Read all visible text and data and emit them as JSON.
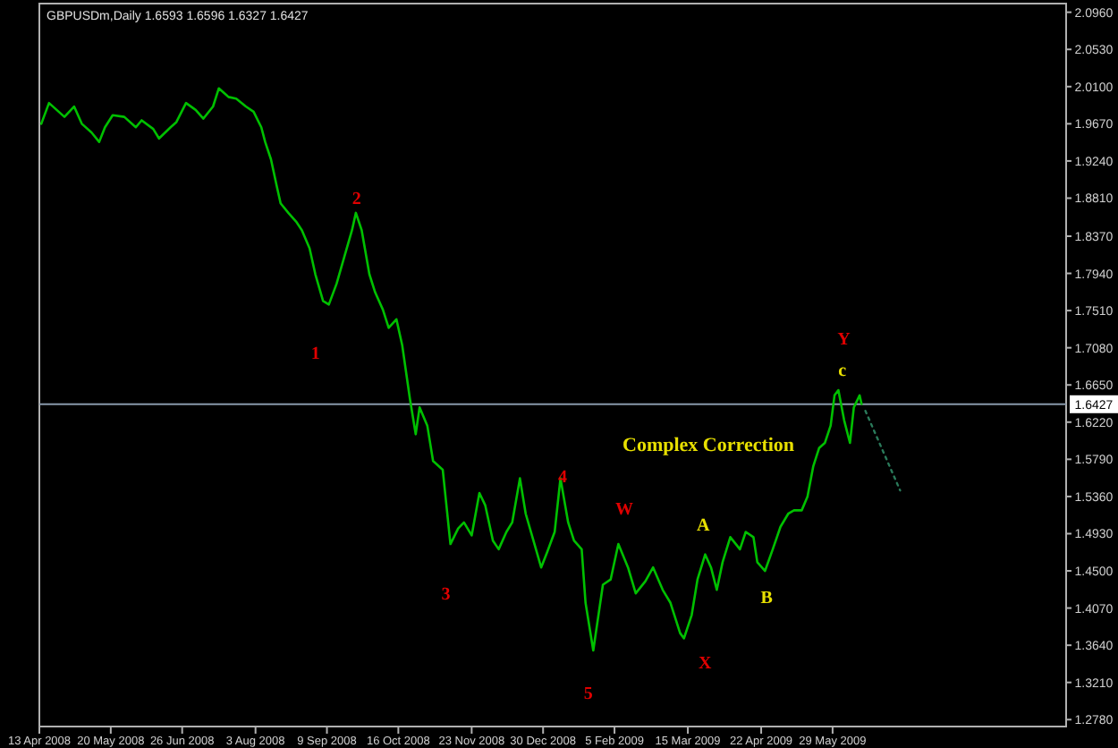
{
  "chart_data": {
    "type": "line",
    "title": "GBPUSDm,Daily  1.6593  1.6596  1.6327  1.6427",
    "xlim": [
      "2008-04-13",
      "2009-09-27"
    ],
    "xticks": [
      {
        "value": "2008-04-13",
        "label": "13 Apr 2008"
      },
      {
        "value": "2008-05-20",
        "label": "20 May 2008"
      },
      {
        "value": "2008-06-26",
        "label": "26 Jun 2008"
      },
      {
        "value": "2008-08-03",
        "label": "3 Aug 2008"
      },
      {
        "value": "2008-09-09",
        "label": "9 Sep 2008"
      },
      {
        "value": "2008-10-16",
        "label": "16 Oct 2008"
      },
      {
        "value": "2008-11-23",
        "label": "23 Nov 2008"
      },
      {
        "value": "2008-12-30",
        "label": "30 Dec 2008"
      },
      {
        "value": "2009-02-05",
        "label": "5 Feb 2009"
      },
      {
        "value": "2009-03-15",
        "label": "15 Mar 2009"
      },
      {
        "value": "2009-04-22",
        "label": "22 Apr 2009"
      },
      {
        "value": "2009-05-29",
        "label": "29 May 2009"
      }
    ],
    "ylim": [
      1.27,
      2.106
    ],
    "yticks": [
      {
        "value": 2.096,
        "label": "2.0960"
      },
      {
        "value": 2.053,
        "label": "2.0530"
      },
      {
        "value": 2.01,
        "label": "2.0100"
      },
      {
        "value": 1.967,
        "label": "1.9670"
      },
      {
        "value": 1.924,
        "label": "1.9240"
      },
      {
        "value": 1.881,
        "label": "1.8810"
      },
      {
        "value": 1.837,
        "label": "1.8370"
      },
      {
        "value": 1.794,
        "label": "1.7940"
      },
      {
        "value": 1.751,
        "label": "1.7510"
      },
      {
        "value": 1.708,
        "label": "1.7080"
      },
      {
        "value": 1.665,
        "label": "1.6650"
      },
      {
        "value": 1.622,
        "label": "1.6220"
      },
      {
        "value": 1.579,
        "label": "1.5790"
      },
      {
        "value": 1.536,
        "label": "1.5360"
      },
      {
        "value": 1.493,
        "label": "1.4930"
      },
      {
        "value": 1.45,
        "label": "1.4500"
      },
      {
        "value": 1.407,
        "label": "1.4070"
      },
      {
        "value": 1.364,
        "label": "1.3640"
      },
      {
        "value": 1.321,
        "label": "1.3210"
      },
      {
        "value": 1.278,
        "label": "1.2780"
      }
    ],
    "ref_lines": [
      {
        "axis": "y",
        "value": 1.6427,
        "label": "1.6427",
        "color": "#8899aa"
      }
    ],
    "series": [
      {
        "color": "#00c000",
        "x": [
          "2008-04-14",
          "2008-04-18",
          "2008-04-22",
          "2008-04-26",
          "2008-05-01",
          "2008-05-05",
          "2008-05-10",
          "2008-05-14",
          "2008-05-17",
          "2008-05-21",
          "2008-05-27",
          "2008-06-02",
          "2008-06-05",
          "2008-06-11",
          "2008-06-14",
          "2008-06-20",
          "2008-06-23",
          "2008-06-28",
          "2008-07-03",
          "2008-07-07",
          "2008-07-12",
          "2008-07-15",
          "2008-07-20",
          "2008-07-24",
          "2008-07-29",
          "2008-08-02",
          "2008-08-06",
          "2008-08-08",
          "2008-08-11",
          "2008-08-14",
          "2008-08-16",
          "2008-08-20",
          "2008-08-24",
          "2008-08-27",
          "2008-08-31",
          "2008-09-03",
          "2008-09-07",
          "2008-09-10",
          "2008-09-14",
          "2008-09-18",
          "2008-09-22",
          "2008-09-24",
          "2008-09-27",
          "2008-10-01",
          "2008-10-04",
          "2008-10-08",
          "2008-10-11",
          "2008-10-15",
          "2008-10-18",
          "2008-10-22",
          "2008-10-25",
          "2008-10-27",
          "2008-10-31",
          "2008-11-03",
          "2008-11-08",
          "2008-11-12",
          "2008-11-16",
          "2008-11-19",
          "2008-11-23",
          "2008-11-27",
          "2008-11-30",
          "2008-12-04",
          "2008-12-07",
          "2008-12-11",
          "2008-12-14",
          "2008-12-18",
          "2008-12-21",
          "2008-12-25",
          "2008-12-29",
          "2009-01-01",
          "2009-01-05",
          "2009-01-08",
          "2009-01-12",
          "2009-01-15",
          "2009-01-19",
          "2009-01-21",
          "2009-01-25",
          "2009-01-30",
          "2009-02-03",
          "2009-02-07",
          "2009-02-12",
          "2009-02-16",
          "2009-02-21",
          "2009-02-25",
          "2009-03-02",
          "2009-03-06",
          "2009-03-11",
          "2009-03-13",
          "2009-03-17",
          "2009-03-20",
          "2009-03-24",
          "2009-03-27",
          "2009-03-30",
          "2009-04-02",
          "2009-04-06",
          "2009-04-11",
          "2009-04-14",
          "2009-04-18",
          "2009-04-20",
          "2009-04-24",
          "2009-04-28",
          "2009-05-02",
          "2009-05-06",
          "2009-05-09",
          "2009-05-13",
          "2009-05-16",
          "2009-05-19",
          "2009-05-22",
          "2009-05-25",
          "2009-05-28",
          "2009-05-30",
          "2009-06-01",
          "2009-06-04",
          "2009-06-07",
          "2009-06-09",
          "2009-06-12",
          "2009-06-13"
        ],
        "values": [
          1.967,
          1.991,
          1.983,
          1.975,
          1.987,
          1.967,
          1.957,
          1.946,
          1.963,
          1.977,
          1.975,
          1.963,
          1.971,
          1.961,
          1.95,
          1.963,
          1.969,
          1.991,
          1.983,
          1.973,
          1.987,
          2.008,
          1.998,
          1.996,
          1.987,
          1.981,
          1.963,
          1.946,
          1.926,
          1.895,
          1.875,
          1.864,
          1.854,
          1.844,
          1.823,
          1.793,
          1.762,
          1.758,
          1.782,
          1.813,
          1.844,
          1.864,
          1.844,
          1.793,
          1.772,
          1.752,
          1.731,
          1.741,
          1.711,
          1.649,
          1.608,
          1.639,
          1.618,
          1.577,
          1.567,
          1.481,
          1.499,
          1.506,
          1.491,
          1.54,
          1.526,
          1.485,
          1.475,
          1.495,
          1.506,
          1.557,
          1.516,
          1.485,
          1.454,
          1.471,
          1.495,
          1.557,
          1.506,
          1.485,
          1.475,
          1.413,
          1.358,
          1.434,
          1.44,
          1.481,
          1.454,
          1.424,
          1.438,
          1.454,
          1.428,
          1.413,
          1.378,
          1.372,
          1.399,
          1.44,
          1.469,
          1.454,
          1.428,
          1.46,
          1.489,
          1.475,
          1.495,
          1.489,
          1.46,
          1.45,
          1.475,
          1.501,
          1.516,
          1.52,
          1.52,
          1.536,
          1.571,
          1.592,
          1.598,
          1.618,
          1.653,
          1.659,
          1.624,
          1.598,
          1.639,
          1.653,
          1.643
        ]
      },
      {
        "color": "#2a7a5a",
        "line_style": "dotted",
        "x": [
          "2009-06-15",
          "2009-07-03"
        ],
        "values": [
          1.635,
          1.543
        ]
      }
    ],
    "annotations": [
      "1",
      "2",
      "3",
      "4",
      "5",
      "W",
      "X",
      "Y",
      "A",
      "B",
      "c",
      "Complex Correction"
    ]
  }
}
